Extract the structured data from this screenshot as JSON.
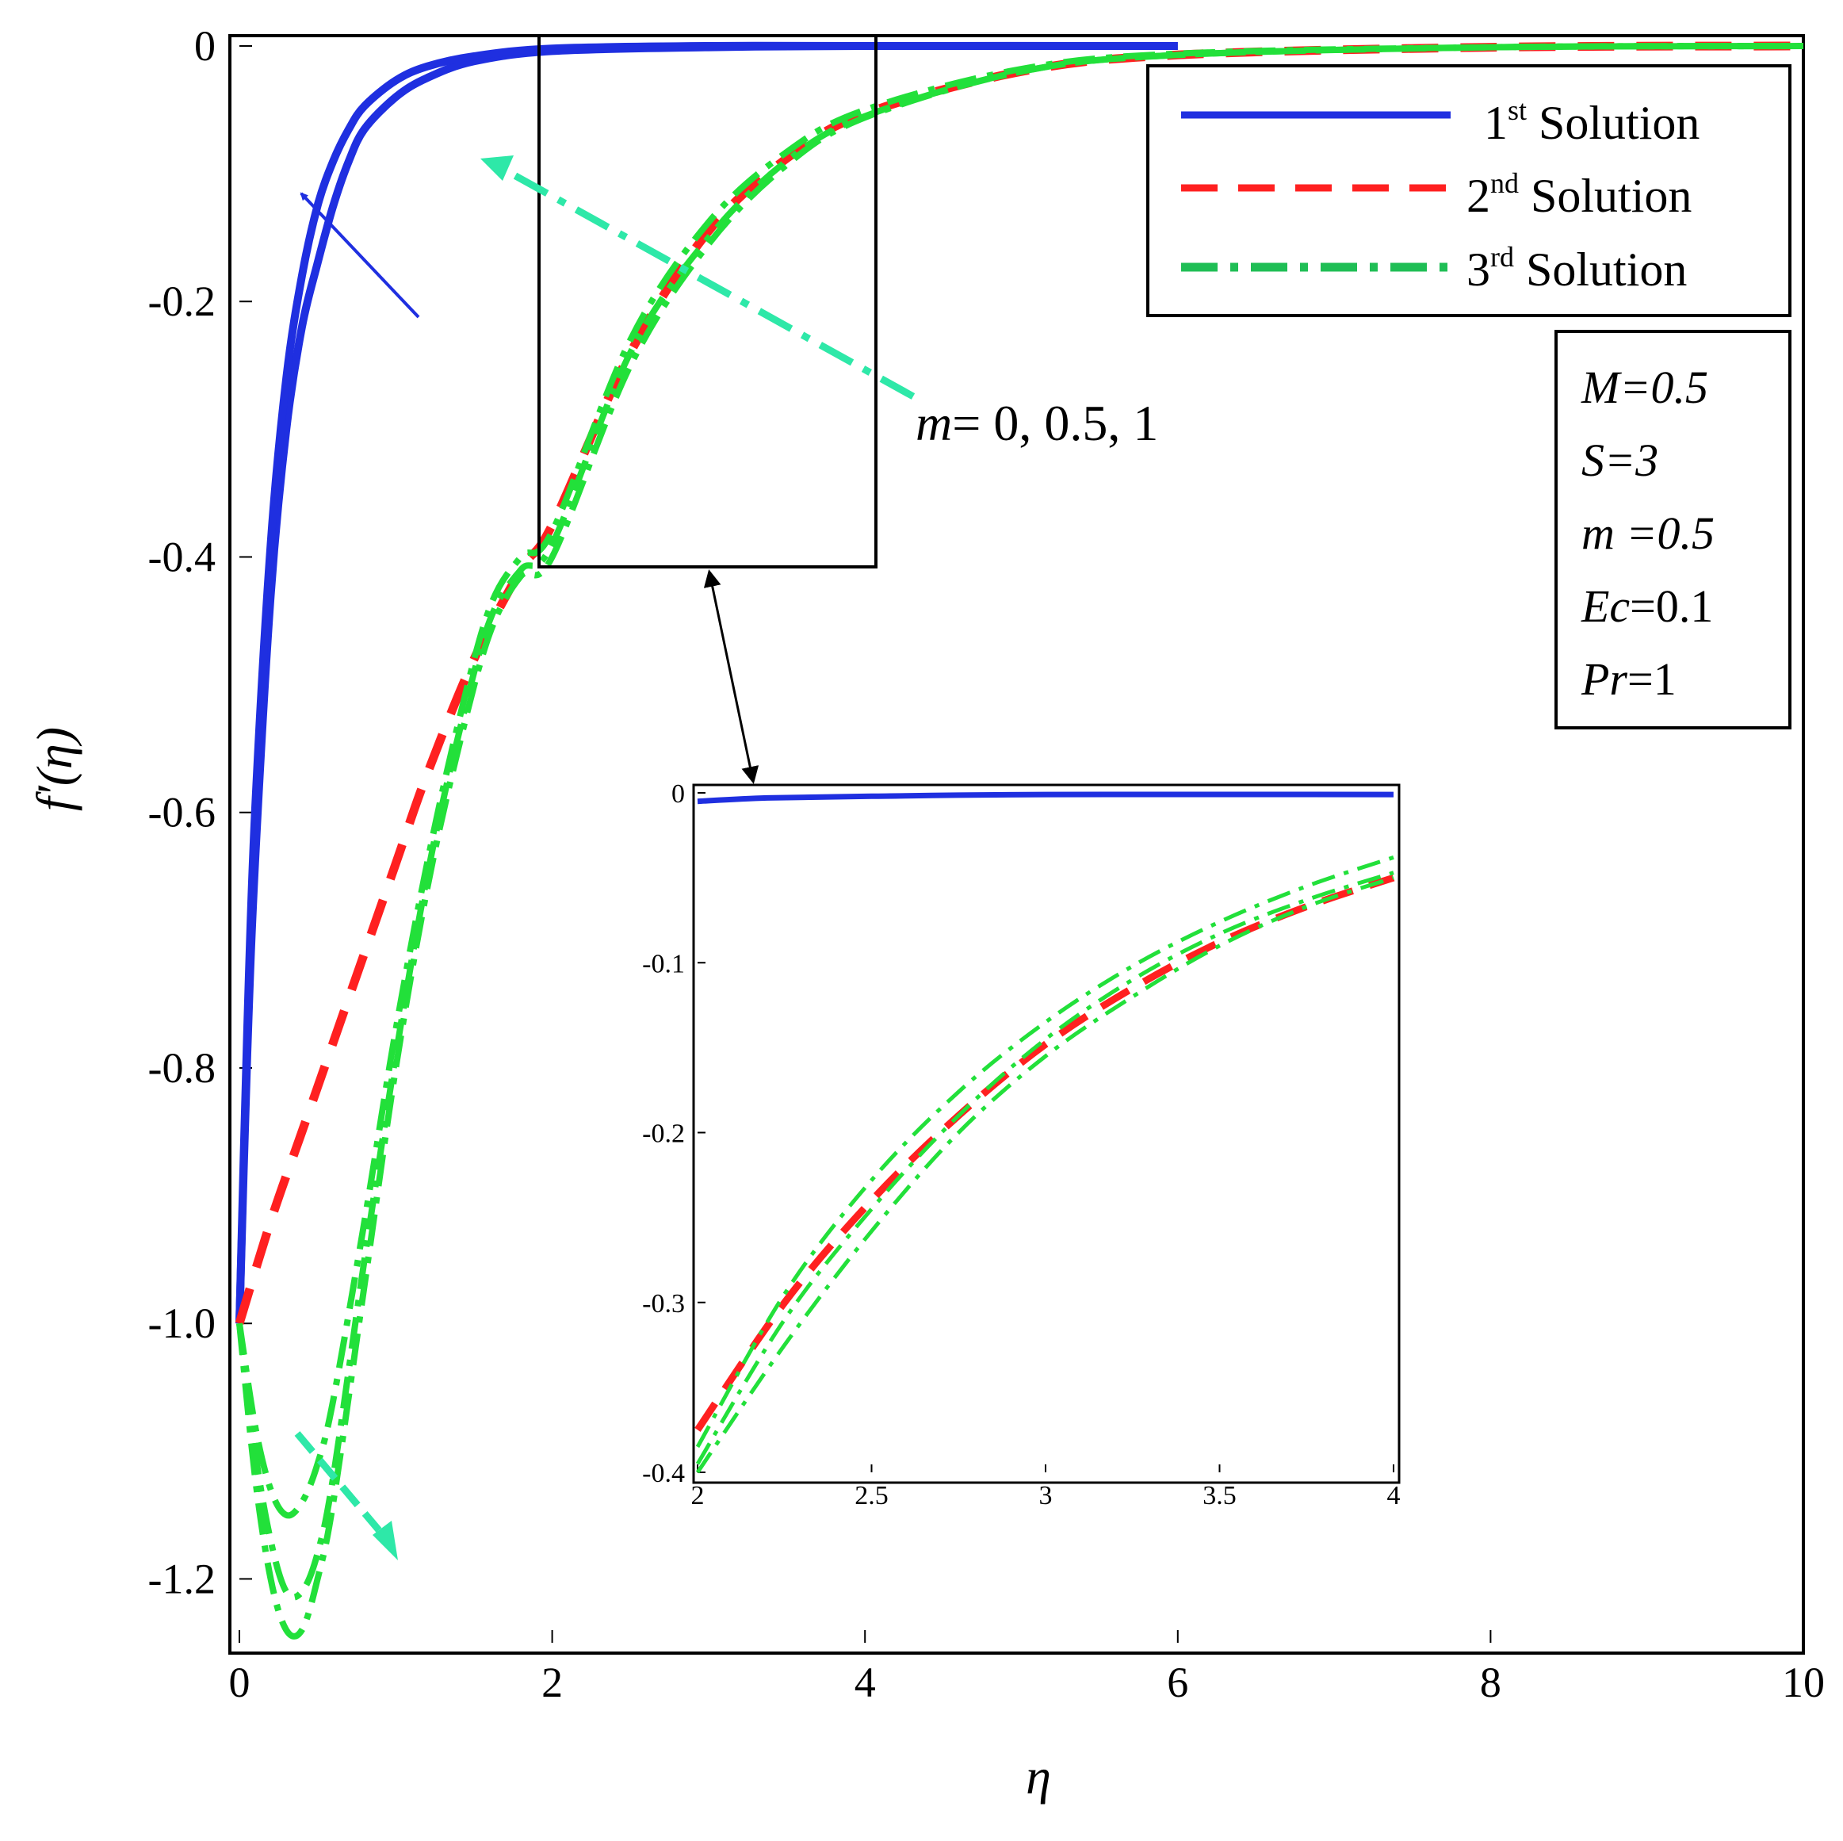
{
  "chart_data": {
    "type": "line",
    "xlabel": "η",
    "ylabel": "f′(η)",
    "xlim": [
      0,
      10
    ],
    "ylim": [
      -1.25,
      0
    ],
    "x_ticks": [
      "0",
      "2",
      "4",
      "6",
      "8",
      "10"
    ],
    "y_ticks": [
      "0",
      "-0.2",
      "-0.4",
      "-0.6",
      "-0.8",
      "-1.0",
      "-1.2"
    ],
    "colors": {
      "solution1": "#1f2fe0",
      "solution2": "#ff2020",
      "solution3": "#22e03a",
      "arrow_green": "#2ee8a8",
      "arrow_blue": "#1f2fe0"
    },
    "legend": {
      "placement": "top-right",
      "entries": [
        {
          "num": "1",
          "sup": "st",
          "text": " Solution"
        },
        {
          "num": "2",
          "sup": "nd",
          "text": " Solution"
        },
        {
          "num": "3",
          "sup": "rd",
          "text": " Solution"
        }
      ]
    },
    "params": [
      {
        "sym": "M",
        "val": "=0.5"
      },
      {
        "sym": "S",
        "val": "=3"
      },
      {
        "sym": "m",
        "val": " =0.5"
      },
      {
        "sym": "Ec",
        "val": "=0.1"
      },
      {
        "sym": "Pr",
        "val": "=1"
      }
    ],
    "annotation": {
      "sym": "m",
      "text": "= 0, 0.5, 1"
    },
    "series": [
      {
        "group": "1",
        "x": [
          0,
          0.05,
          0.1,
          0.2,
          0.3,
          0.4,
          0.5,
          0.6,
          0.7,
          0.8,
          1.0,
          1.2,
          1.5,
          2.0,
          3.0,
          4.0,
          6.0
        ],
        "y": [
          -1.0,
          -0.79,
          -0.64,
          -0.43,
          -0.3,
          -0.22,
          -0.17,
          -0.125,
          -0.09,
          -0.065,
          -0.04,
          -0.025,
          -0.012,
          -0.004,
          -0.001,
          0,
          0
        ]
      },
      {
        "group": "1",
        "x": [
          0,
          0.05,
          0.1,
          0.2,
          0.3,
          0.4,
          0.5,
          0.6,
          0.7,
          0.8,
          1.0,
          1.2,
          1.5,
          2.0,
          3.0,
          4.0,
          6.0
        ],
        "y": [
          -1.0,
          -0.77,
          -0.6,
          -0.39,
          -0.26,
          -0.18,
          -0.125,
          -0.09,
          -0.065,
          -0.047,
          -0.027,
          -0.016,
          -0.008,
          -0.002,
          0,
          0,
          0
        ]
      },
      {
        "group": "2",
        "x": [
          0,
          0.2,
          0.4,
          0.6,
          0.8,
          1.0,
          1.2,
          1.5,
          1.8,
          2.0,
          2.5,
          3.0,
          3.5,
          4.0,
          5.0,
          6.0,
          8.0,
          10.0
        ],
        "y": [
          -1.0,
          -0.92,
          -0.85,
          -0.78,
          -0.71,
          -0.64,
          -0.57,
          -0.48,
          -0.41,
          -0.375,
          -0.24,
          -0.145,
          -0.088,
          -0.053,
          -0.02,
          -0.007,
          -0.001,
          0
        ]
      },
      {
        "group": "3",
        "x": [
          0,
          0.1,
          0.2,
          0.3,
          0.4,
          0.5,
          0.6,
          0.8,
          1.0,
          1.2,
          1.4,
          1.6,
          1.8,
          2.0,
          2.5,
          3.0,
          3.5,
          4.0,
          5.0,
          6.0,
          8.0,
          10.0
        ],
        "y": [
          -1.0,
          -1.1,
          -1.17,
          -1.21,
          -1.21,
          -1.18,
          -1.12,
          -0.95,
          -0.79,
          -0.65,
          -0.54,
          -0.45,
          -0.41,
          -0.39,
          -0.24,
          -0.15,
          -0.09,
          -0.055,
          -0.02,
          -0.007,
          -0.001,
          0
        ]
      },
      {
        "group": "3",
        "x": [
          0,
          0.1,
          0.2,
          0.3,
          0.4,
          0.5,
          0.6,
          0.8,
          1.0,
          1.2,
          1.4,
          1.6,
          1.8,
          2.0,
          2.5,
          3.0,
          3.5,
          4.0,
          5.0,
          6.0,
          8.0,
          10.0
        ],
        "y": [
          -1.0,
          -1.12,
          -1.2,
          -1.24,
          -1.24,
          -1.2,
          -1.14,
          -0.97,
          -0.8,
          -0.66,
          -0.55,
          -0.46,
          -0.415,
          -0.4,
          -0.25,
          -0.155,
          -0.093,
          -0.056,
          -0.02,
          -0.007,
          -0.001,
          0
        ]
      },
      {
        "group": "3",
        "x": [
          0,
          0.1,
          0.2,
          0.3,
          0.4,
          0.5,
          0.6,
          0.8,
          1.0,
          1.2,
          1.4,
          1.6,
          1.8,
          2.0,
          2.5,
          3.0,
          3.5,
          4.0,
          5.0,
          6.0,
          8.0,
          10.0
        ],
        "y": [
          -1.0,
          -1.08,
          -1.13,
          -1.15,
          -1.14,
          -1.11,
          -1.06,
          -0.92,
          -0.77,
          -0.64,
          -0.53,
          -0.44,
          -0.4,
          -0.38,
          -0.23,
          -0.138,
          -0.083,
          -0.05,
          -0.018,
          -0.006,
          -0.001,
          0
        ]
      }
    ],
    "inset": {
      "xlim": [
        2,
        4
      ],
      "ylim": [
        -0.4,
        0
      ],
      "x_ticks": [
        "2",
        "2.5",
        "3",
        "3.5",
        "4"
      ],
      "y_ticks": [
        "0",
        "-0.1",
        "-0.2",
        "-0.3",
        "-0.4"
      ],
      "series": [
        {
          "group": "1",
          "x": [
            2.0,
            2.2,
            2.5,
            3.0,
            4.0
          ],
          "y": [
            -0.005,
            -0.003,
            -0.002,
            -0.001,
            -0.001
          ]
        },
        {
          "group": "2",
          "x": [
            2.0,
            2.25,
            2.5,
            2.75,
            3.0,
            3.25,
            3.5,
            3.75,
            4.0
          ],
          "y": [
            -0.375,
            -0.3,
            -0.24,
            -0.19,
            -0.148,
            -0.115,
            -0.088,
            -0.067,
            -0.05
          ]
        },
        {
          "group": "3",
          "x": [
            2.0,
            2.25,
            2.5,
            2.75,
            3.0,
            3.25,
            3.5,
            3.75,
            4.0
          ],
          "y": [
            -0.395,
            -0.31,
            -0.245,
            -0.19,
            -0.145,
            -0.11,
            -0.083,
            -0.063,
            -0.047
          ]
        },
        {
          "group": "3",
          "x": [
            2.0,
            2.25,
            2.5,
            2.75,
            3.0,
            3.25,
            3.5,
            3.75,
            4.0
          ],
          "y": [
            -0.4,
            -0.325,
            -0.258,
            -0.2,
            -0.155,
            -0.12,
            -0.09,
            -0.067,
            -0.05
          ]
        },
        {
          "group": "3",
          "x": [
            2.0,
            2.25,
            2.5,
            2.75,
            3.0,
            3.25,
            3.5,
            3.75,
            4.0
          ],
          "y": [
            -0.385,
            -0.295,
            -0.228,
            -0.176,
            -0.135,
            -0.102,
            -0.076,
            -0.055,
            -0.038
          ]
        }
      ]
    }
  }
}
